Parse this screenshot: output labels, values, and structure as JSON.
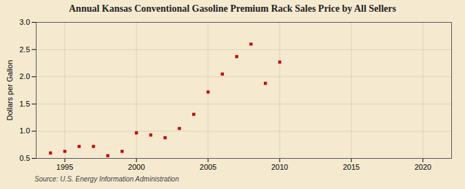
{
  "chart_data": {
    "type": "scatter",
    "title": "Annual Kansas Conventional Gasoline Premium Rack Sales Price by All Sellers",
    "ylabel": "Dollars per Gallon",
    "annotations": [
      "Source: U.S. Energy Information Administration"
    ],
    "x": [
      1994,
      1995,
      1996,
      1997,
      1998,
      1999,
      2000,
      2001,
      2002,
      2003,
      2004,
      2005,
      2006,
      2007,
      2008,
      2009,
      2010
    ],
    "values": [
      0.6,
      0.63,
      0.72,
      0.72,
      0.55,
      0.63,
      0.97,
      0.93,
      0.88,
      1.05,
      1.31,
      1.72,
      2.05,
      2.37,
      2.6,
      1.88,
      2.27
    ],
    "color": "#cc0000",
    "marker": "square",
    "xlim": [
      1993,
      2022
    ],
    "ylim": [
      0.5,
      3.0
    ],
    "xticks": [
      1995,
      2000,
      2005,
      2010,
      2015,
      2020
    ],
    "yticks": [
      0.5,
      {
        "value": 1.0,
        "label": "1.0"
      },
      1.5,
      {
        "value": 2.0,
        "label": "2.0"
      },
      2.5,
      {
        "value": 3.0,
        "label": "3.0"
      }
    ],
    "grid": true
  }
}
